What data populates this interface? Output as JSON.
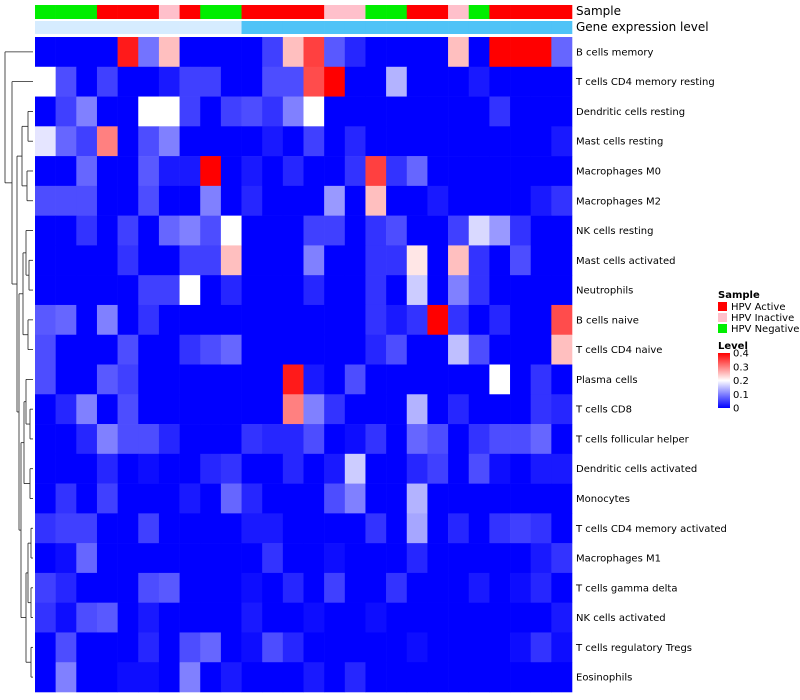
{
  "chart_data": {
    "type": "heatmap",
    "title": "",
    "annotation_tracks": [
      {
        "name": "Sample",
        "label": "Sample"
      },
      {
        "name": "Gene expression level",
        "label": "Gene expression level"
      }
    ],
    "sample_groups": [
      "Negative",
      "Negative",
      "Negative",
      "Active",
      "Active",
      "Active",
      "Inactive",
      "Active",
      "Negative",
      "Negative",
      "Active",
      "Active",
      "Active",
      "Active",
      "Inactive",
      "Inactive",
      "Negative",
      "Negative",
      "Active",
      "Active",
      "Inactive",
      "Negative",
      "Active",
      "Active",
      "Active",
      "Active"
    ],
    "expression_level": [
      "low",
      "low",
      "low",
      "low",
      "low",
      "low",
      "low",
      "low",
      "low",
      "low",
      "high",
      "high",
      "high",
      "high",
      "high",
      "high",
      "high",
      "high",
      "high",
      "high",
      "high",
      "high",
      "high",
      "high",
      "high",
      "high"
    ],
    "rows": [
      "B cells memory",
      "T cells CD4 memory resting",
      "Dendritic cells resting",
      "Mast cells resting",
      "Macrophages M0",
      "Macrophages M2",
      "NK cells resting",
      "Mast cells activated",
      "Neutrophils",
      "B cells naive",
      "T cells CD4 naive",
      "Plasma cells",
      "T cells CD8",
      "T cells follicular helper",
      "Dendritic cells activated",
      "Monocytes",
      "T cells CD4 memory activated",
      "Macrophages M1",
      "T cells gamma delta",
      "NK cells activated",
      "T cells regulatory  Tregs",
      "Eosinophils"
    ],
    "values": [
      [
        0,
        0,
        0,
        0,
        0.38,
        0.09,
        0.25,
        0,
        0,
        0,
        0,
        0.05,
        0.25,
        0.35,
        0.07,
        0.03,
        0,
        0,
        0,
        0,
        0.25,
        0,
        0.4,
        0.4,
        0.4,
        0.08
      ],
      [
        0.2,
        0.06,
        0,
        0.05,
        0,
        0,
        0.02,
        0.05,
        0.05,
        0,
        0,
        0.06,
        0.06,
        0.34,
        0.4,
        0,
        0,
        0.14,
        0,
        0,
        0,
        0.02,
        0,
        0,
        0,
        0
      ],
      [
        0,
        0.05,
        0.1,
        0,
        0,
        0.2,
        0.2,
        0.05,
        0,
        0.05,
        0.06,
        0.04,
        0.1,
        0.2,
        0,
        0,
        0,
        0,
        0,
        0,
        0,
        0,
        0.04,
        0,
        0,
        0
      ],
      [
        0.18,
        0.08,
        0.05,
        0.3,
        0,
        0.06,
        0.1,
        0,
        0,
        0,
        0,
        0.02,
        0,
        0.05,
        0,
        0.03,
        0,
        0,
        0,
        0,
        0,
        0,
        0,
        0,
        0,
        0.02
      ],
      [
        0,
        0,
        0.08,
        0,
        0,
        0.07,
        0.02,
        0.02,
        0.4,
        0,
        0.02,
        0,
        0.03,
        0,
        0,
        0.04,
        0.35,
        0.04,
        0.08,
        0,
        0,
        0,
        0,
        0,
        0,
        0
      ],
      [
        0.06,
        0.06,
        0.06,
        0,
        0,
        0.06,
        0,
        0,
        0.1,
        0,
        0.03,
        0,
        0,
        0,
        0.12,
        0,
        0.25,
        0,
        0,
        0.02,
        0,
        0,
        0,
        0,
        0.02,
        0.04
      ],
      [
        0,
        0,
        0.04,
        0,
        0.05,
        0,
        0.08,
        0.1,
        0.06,
        0.2,
        0,
        0,
        0,
        0.05,
        0.05,
        0,
        0.04,
        0.06,
        0,
        0,
        0.05,
        0.17,
        0.12,
        0.04,
        0,
        0
      ],
      [
        0,
        0,
        0,
        0,
        0.04,
        0,
        0,
        0.05,
        0.05,
        0.25,
        0,
        0,
        0,
        0.1,
        0,
        0,
        0.04,
        0.04,
        0.22,
        0,
        0.25,
        0.04,
        0,
        0.06,
        0,
        0
      ],
      [
        0,
        0,
        0,
        0,
        0,
        0.05,
        0.05,
        0.2,
        0,
        0.03,
        0,
        0,
        0,
        0.03,
        0,
        0,
        0.04,
        0,
        0.16,
        0,
        0.1,
        0.04,
        0,
        0,
        0,
        0
      ],
      [
        0.07,
        0.08,
        0,
        0.1,
        0,
        0.04,
        0,
        0,
        0,
        0,
        0,
        0,
        0,
        0,
        0,
        0,
        0.04,
        0.02,
        0.04,
        0.4,
        0.04,
        0,
        0.03,
        0,
        0,
        0.34
      ],
      [
        0.06,
        0,
        0,
        0,
        0.06,
        0,
        0,
        0.04,
        0.06,
        0.08,
        0,
        0,
        0,
        0,
        0,
        0,
        0.03,
        0.06,
        0,
        0,
        0.15,
        0.06,
        0,
        0,
        0,
        0.25
      ],
      [
        0.06,
        0,
        0,
        0.07,
        0.05,
        0,
        0,
        0,
        0,
        0,
        0,
        0,
        0.38,
        0.02,
        0,
        0.06,
        0,
        0,
        0,
        0,
        0,
        0,
        0.2,
        0,
        0.04,
        0
      ],
      [
        0,
        0.03,
        0.1,
        0,
        0.06,
        0,
        0,
        0,
        0,
        0,
        0,
        0,
        0.3,
        0.1,
        0.04,
        0,
        0,
        0,
        0.14,
        0,
        0.03,
        0,
        0,
        0,
        0.04,
        0.03
      ],
      [
        0,
        0,
        0.03,
        0.1,
        0.06,
        0.06,
        0.03,
        0,
        0,
        0,
        0.04,
        0.03,
        0.03,
        0.06,
        0,
        0.01,
        0.04,
        0,
        0.08,
        0.06,
        0,
        0.04,
        0.06,
        0.06,
        0.08,
        0
      ],
      [
        0,
        0,
        0,
        0.03,
        0,
        0.01,
        0,
        0,
        0.03,
        0.04,
        0,
        0,
        0.03,
        0,
        0.02,
        0.16,
        0,
        0,
        0.03,
        0.05,
        0,
        0.06,
        0.01,
        0,
        0.02,
        0.02
      ],
      [
        0,
        0.04,
        0,
        0.05,
        0,
        0,
        0,
        0.02,
        0,
        0.08,
        0.03,
        0,
        0,
        0,
        0.06,
        0.1,
        0,
        0,
        0.14,
        0,
        0,
        0,
        0,
        0,
        0,
        0
      ],
      [
        0.04,
        0.05,
        0.05,
        0,
        0,
        0.05,
        0,
        0,
        0,
        0,
        0.02,
        0.02,
        0,
        0,
        0,
        0,
        0.04,
        0,
        0.13,
        0,
        0.03,
        0,
        0.04,
        0.05,
        0.04,
        0
      ],
      [
        0,
        0.01,
        0.08,
        0,
        0,
        0,
        0,
        0,
        0,
        0,
        0,
        0.04,
        0,
        0,
        0.01,
        0,
        0,
        0,
        0.03,
        0,
        0,
        0,
        0,
        0,
        0.02,
        0.04
      ],
      [
        0.05,
        0.03,
        0,
        0,
        0,
        0.06,
        0.07,
        0,
        0,
        0,
        0.01,
        0,
        0.03,
        0,
        0.05,
        0,
        0,
        0.04,
        0,
        0,
        0,
        0.02,
        0,
        0.01,
        0.03,
        0
      ],
      [
        0.04,
        0.01,
        0.06,
        0.07,
        0,
        0.02,
        0,
        0,
        0,
        0,
        0.02,
        0,
        0,
        0.01,
        0,
        0,
        0.01,
        0,
        0,
        0,
        0,
        0,
        0,
        0,
        0,
        0.02
      ],
      [
        0,
        0.06,
        0,
        0,
        0,
        0.03,
        0,
        0.06,
        0.08,
        0,
        0.01,
        0.06,
        0.03,
        0,
        0,
        0,
        0,
        0,
        0.01,
        0,
        0,
        0,
        0,
        0.01,
        0.04,
        0.01
      ],
      [
        0,
        0.1,
        0,
        0,
        0.01,
        0.01,
        0,
        0.1,
        0,
        0.02,
        0,
        0,
        0,
        0.02,
        0,
        0.03,
        0,
        0,
        0,
        0,
        0,
        0,
        0,
        0,
        0,
        0
      ]
    ],
    "legend": {
      "sample_title": "Sample",
      "sample_items": [
        {
          "key": "Active",
          "label": "HPV Active",
          "color": "#ff0000"
        },
        {
          "key": "Inactive",
          "label": "HPV Inactive",
          "color": "#ffc0cb"
        },
        {
          "key": "Negative",
          "label": "HPV Negative",
          "color": "#00ee00"
        }
      ],
      "level_title": "Level",
      "level_ticks": [
        "0.4",
        "0.3",
        "0.2",
        "0.1",
        "0"
      ],
      "level_range": [
        0,
        0.4
      ]
    },
    "expression_colors": {
      "low": "#d6ecff",
      "high": "#4fc3f7"
    },
    "scale_colors": {
      "low": "#0000ff",
      "mid": "#ffffff",
      "high": "#ff0000"
    }
  }
}
